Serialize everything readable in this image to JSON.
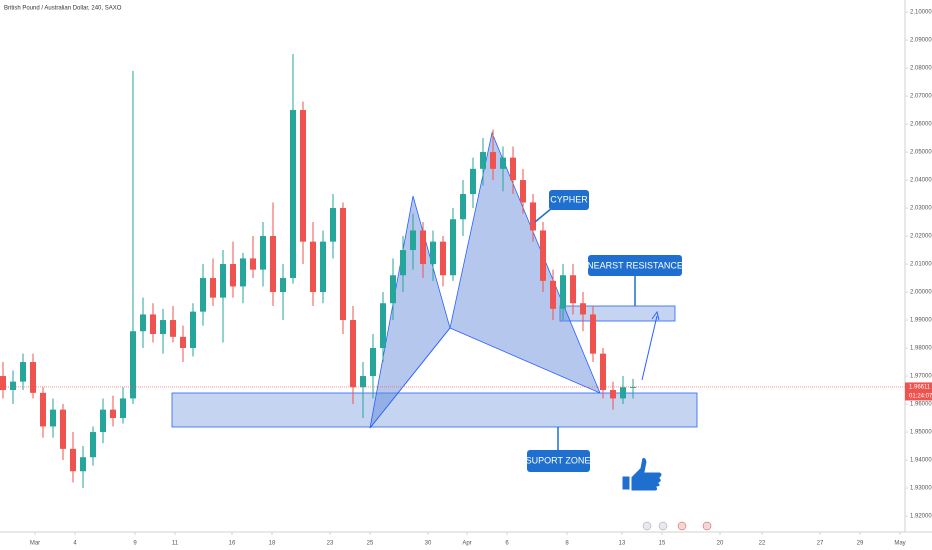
{
  "chart_data": {
    "type": "candlestick",
    "title": "British Pound / Australian Dollar, 240, SAXO",
    "up_color": "#26a69a",
    "down_color": "#ef5350",
    "x": [
      -1.6,
      -1.1,
      -0.6,
      -0.1,
      0.4,
      0.9,
      1.4,
      1.9,
      2.4,
      2.9,
      3.4,
      3.9,
      4.4,
      4.9,
      5.4,
      5.9,
      6.4,
      6.9,
      7.4,
      7.9,
      8.4,
      8.9,
      9.4,
      9.9,
      10.4,
      10.9,
      11.4,
      11.9,
      12.4,
      12.9,
      13.4,
      13.9,
      14.4,
      14.9,
      15.4,
      15.9,
      16.4,
      16.9,
      17.4,
      17.9,
      18.4,
      18.9,
      19.4,
      19.9,
      20.4,
      20.9,
      21.4,
      21.9,
      22.4,
      22.9,
      23.4,
      23.9,
      24.4,
      24.9,
      25.4,
      25.9,
      26.4,
      26.9,
      27.4,
      27.9,
      28.4,
      28.9,
      29.4,
      29.9
    ],
    "open": [
      1.97,
      1.965,
      1.968,
      1.975,
      1.964,
      1.952,
      1.958,
      1.944,
      1.936,
      1.941,
      1.95,
      1.958,
      1.955,
      1.962,
      1.986,
      1.992,
      1.985,
      1.99,
      1.984,
      1.98,
      1.993,
      2.005,
      1.998,
      2.01,
      2.002,
      2.012,
      2.008,
      2.02,
      2.0,
      2.005,
      2.065,
      2.018,
      2.0,
      2.018,
      2.03,
      1.99,
      1.966,
      1.97,
      1.98,
      1.996,
      2.006,
      2.015,
      2.022,
      2.01,
      2.018,
      2.006,
      2.026,
      2.035,
      2.044,
      2.05,
      2.044,
      2.048,
      2.04,
      2.032,
      2.022,
      2.004,
      1.994,
      2.006,
      1.996,
      1.992,
      1.978,
      1.965,
      1.962,
      1.966
    ],
    "high": [
      1.975,
      1.972,
      1.978,
      1.978,
      1.966,
      1.962,
      1.96,
      1.95,
      1.945,
      1.952,
      1.962,
      1.963,
      1.966,
      2.079,
      1.998,
      1.996,
      1.994,
      1.995,
      1.988,
      1.996,
      2.01,
      2.012,
      2.015,
      2.018,
      2.014,
      2.02,
      2.025,
      2.032,
      2.01,
      2.085,
      2.068,
      2.025,
      2.022,
      2.035,
      2.032,
      1.995,
      1.975,
      1.985,
      2.0,
      2.012,
      2.02,
      2.028,
      2.025,
      2.022,
      2.02,
      2.03,
      2.04,
      2.048,
      2.055,
      2.058,
      2.052,
      2.052,
      2.044,
      2.035,
      2.025,
      2.008,
      2.01,
      2.01,
      2.0,
      1.995,
      1.98,
      1.968,
      1.97,
      1.969
    ],
    "low": [
      1.962,
      1.96,
      1.965,
      1.962,
      1.948,
      1.948,
      1.94,
      1.932,
      1.93,
      1.938,
      1.946,
      1.952,
      1.953,
      1.96,
      1.98,
      1.982,
      1.978,
      1.982,
      1.975,
      1.977,
      1.988,
      1.995,
      1.982,
      1.998,
      1.996,
      2.005,
      2.002,
      1.995,
      1.99,
      2.003,
      2.01,
      1.995,
      1.996,
      2.012,
      1.985,
      1.96,
      1.955,
      1.962,
      1.975,
      1.99,
      2.0,
      2.008,
      2.005,
      2.004,
      2.002,
      2.004,
      2.02,
      2.03,
      2.038,
      2.04,
      2.036,
      2.035,
      2.028,
      2.018,
      2.0,
      1.99,
      1.99,
      1.992,
      1.986,
      1.975,
      1.962,
      1.958,
      1.96,
      1.962
    ],
    "close": [
      1.965,
      1.968,
      1.975,
      1.964,
      1.952,
      1.958,
      1.944,
      1.936,
      1.941,
      1.95,
      1.958,
      1.955,
      1.962,
      1.986,
      1.992,
      1.985,
      1.99,
      1.984,
      1.98,
      1.993,
      2.005,
      1.998,
      2.01,
      2.002,
      2.012,
      2.008,
      2.02,
      2.0,
      2.005,
      2.065,
      2.018,
      2.0,
      2.018,
      2.03,
      1.99,
      1.966,
      1.97,
      1.98,
      1.996,
      2.006,
      2.015,
      2.022,
      2.01,
      2.018,
      2.006,
      2.026,
      2.035,
      2.044,
      2.05,
      2.044,
      2.048,
      2.04,
      2.032,
      2.022,
      2.004,
      1.994,
      2.006,
      1.996,
      1.992,
      1.978,
      1.965,
      1.962,
      1.966,
      1.96611
    ],
    "xlim": [
      -1.75,
      43.5
    ],
    "ylim": [
      1.9168,
      2.1043
    ],
    "xticks": [
      {
        "value": 0,
        "label": "Mar"
      },
      {
        "value": 2,
        "label": "4"
      },
      {
        "value": 5,
        "label": "9"
      },
      {
        "value": 7,
        "label": "11"
      },
      {
        "value": 9.85,
        "label": "16"
      },
      {
        "value": 11.85,
        "label": "18"
      },
      {
        "value": 14.75,
        "label": "23"
      },
      {
        "value": 16.75,
        "label": "25"
      },
      {
        "value": 19.65,
        "label": "30"
      },
      {
        "value": 21.6,
        "label": "Apr"
      },
      {
        "value": 23.6,
        "label": "6"
      },
      {
        "value": 26.6,
        "label": "8"
      },
      {
        "value": 29.35,
        "label": "13"
      },
      {
        "value": 31.35,
        "label": "15"
      },
      {
        "value": 34.25,
        "label": "20"
      },
      {
        "value": 36.35,
        "label": "22"
      },
      {
        "value": 39.25,
        "label": "27"
      },
      {
        "value": 41.25,
        "label": "29"
      },
      {
        "value": 43.25,
        "label": "May"
      }
    ],
    "yticks": [
      {
        "value": 1.92,
        "label": "1.92000"
      },
      {
        "value": 1.93,
        "label": "1.93000"
      },
      {
        "value": 1.94,
        "label": "1.94000"
      },
      {
        "value": 1.95,
        "label": "1.95000"
      },
      {
        "value": 1.96,
        "label": "1.96000"
      },
      {
        "value": 1.97,
        "label": "1.97000"
      },
      {
        "value": 1.98,
        "label": "1.98000"
      },
      {
        "value": 1.99,
        "label": "1.99000"
      },
      {
        "value": 2.0,
        "label": "2.00000"
      },
      {
        "value": 2.01,
        "label": "2.01000"
      },
      {
        "value": 2.02,
        "label": "2.02000"
      },
      {
        "value": 2.03,
        "label": "2.03000"
      },
      {
        "value": 2.04,
        "label": "2.04000"
      },
      {
        "value": 2.05,
        "label": "2.05000"
      },
      {
        "value": 2.06,
        "label": "2.06000"
      },
      {
        "value": 2.07,
        "label": "2.07000"
      },
      {
        "value": 2.08,
        "label": "2.08000"
      },
      {
        "value": 2.09,
        "label": "2.09000"
      },
      {
        "value": 2.1,
        "label": "2.10000"
      }
    ],
    "last_price": 1.96611,
    "countdown": "01:24:07",
    "annotations": [
      "CYPHER",
      "NEARST RESISTANCE",
      "SUPORT ZONE"
    ]
  }
}
